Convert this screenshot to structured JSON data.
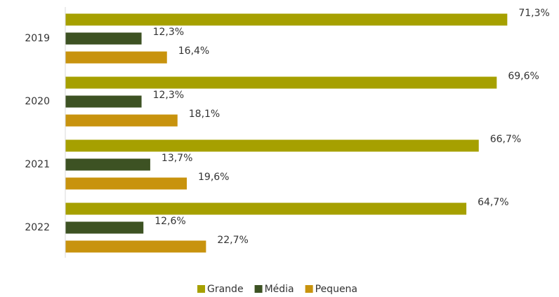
{
  "chart_data": {
    "type": "bar",
    "orientation": "horizontal",
    "categories": [
      "2019",
      "2020",
      "2021",
      "2022"
    ],
    "series": [
      {
        "name": "Grande",
        "color": "#a6a000",
        "values": [
          71.3,
          69.6,
          66.7,
          64.7
        ],
        "value_labels": [
          "71,3%",
          "69,6%",
          "66,7%",
          "64,7%"
        ]
      },
      {
        "name": "Média",
        "color": "#3d5223",
        "values": [
          12.3,
          12.3,
          13.7,
          12.6
        ],
        "value_labels": [
          "12,3%",
          "12,3%",
          "13,7%",
          "12,6%"
        ]
      },
      {
        "name": "Pequena",
        "color": "#c8930e",
        "values": [
          16.4,
          18.1,
          19.6,
          22.7
        ],
        "value_labels": [
          "16,4%",
          "18,1%",
          "19,6%",
          "22,7%"
        ]
      }
    ],
    "xlim": [
      0,
      75
    ],
    "legend": "bottom"
  }
}
